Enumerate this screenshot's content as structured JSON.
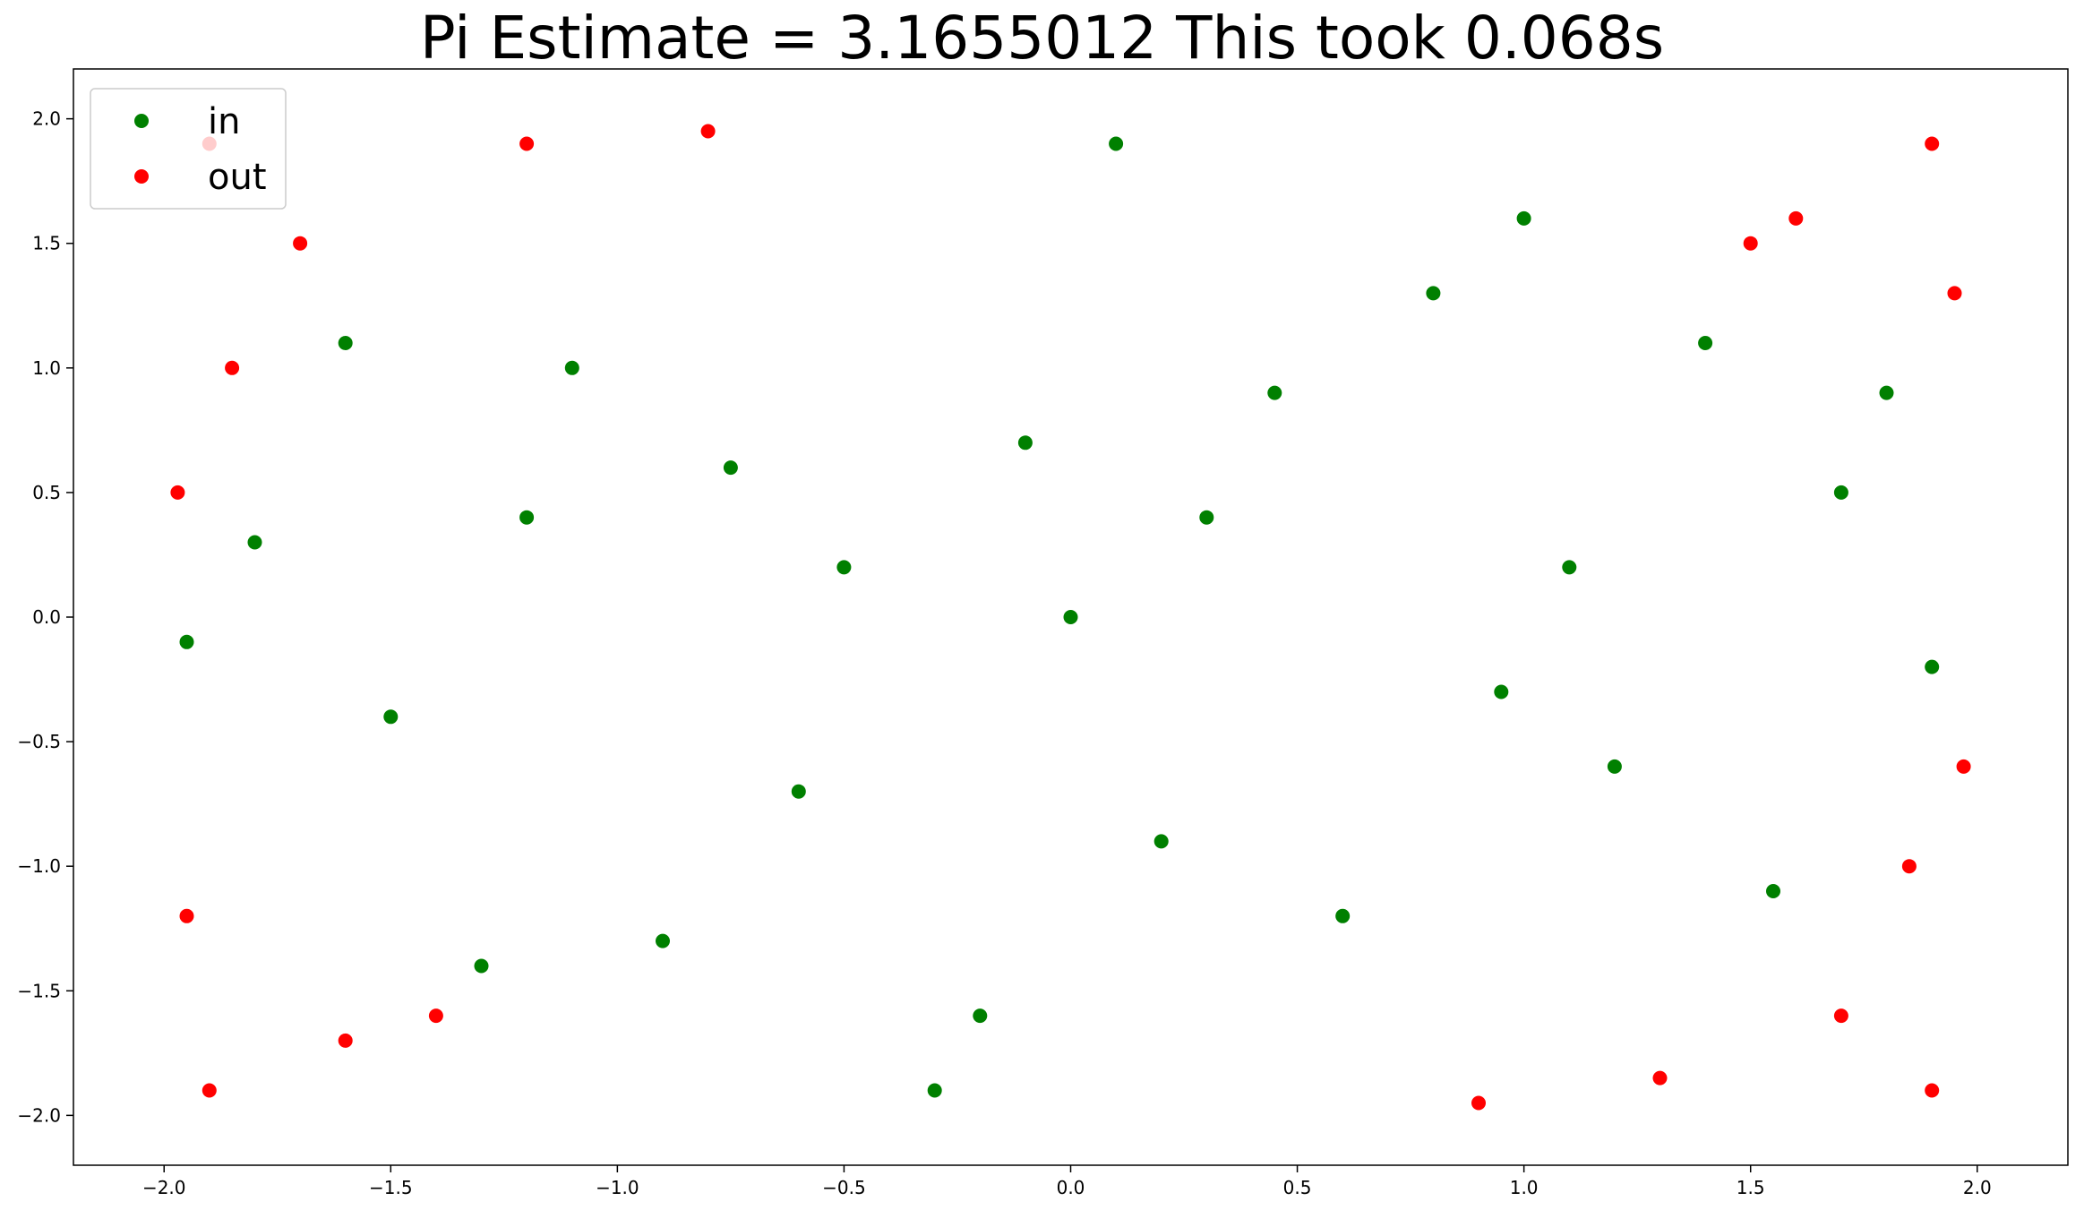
{
  "chart_data": {
    "type": "scatter",
    "title": "Pi Estimate = 3.1655012 This took 0.068s",
    "xlabel": "",
    "ylabel": "",
    "xlim": [
      -2.2,
      2.2
    ],
    "ylim": [
      -2.2,
      2.2
    ],
    "xticks": [
      -2.0,
      -1.5,
      -1.0,
      -0.5,
      0.0,
      0.5,
      1.0,
      1.5,
      2.0
    ],
    "xtick_labels": [
      "−2.0",
      "−1.5",
      "−1.0",
      "−0.5",
      "0.0",
      "0.5",
      "1.0",
      "1.5",
      "2.0"
    ],
    "yticks": [
      2.0,
      1.5,
      1.0,
      0.5,
      0.0,
      -0.5,
      -1.0,
      -1.5,
      -2.0
    ],
    "ytick_labels": [
      "2.0",
      "1.5",
      "1.0",
      "0.5",
      "0.0",
      "−0.5",
      "−1.0",
      "−1.5",
      "−2.0"
    ],
    "grid": false,
    "legend_position": "top-left",
    "series": [
      {
        "name": "in",
        "color": "#008000",
        "points": [
          [
            0.0,
            0.0
          ],
          [
            0.3,
            0.4
          ],
          [
            -0.5,
            0.2
          ],
          [
            1.2,
            -0.6
          ],
          [
            -1.1,
            1.0
          ],
          [
            0.8,
            1.3
          ],
          [
            -1.5,
            -0.4
          ],
          [
            1.7,
            0.5
          ],
          [
            -0.2,
            -1.6
          ],
          [
            0.6,
            -1.2
          ],
          [
            -1.8,
            0.3
          ],
          [
            1.0,
            1.6
          ],
          [
            -0.9,
            -1.3
          ],
          [
            0.1,
            1.9
          ],
          [
            -0.3,
            -1.9
          ],
          [
            1.9,
            -0.2
          ],
          [
            -1.95,
            -0.1
          ],
          [
            1.4,
            1.1
          ],
          [
            -1.3,
            -1.4
          ],
          [
            0.45,
            0.9
          ],
          [
            -0.75,
            0.6
          ],
          [
            1.55,
            -1.1
          ],
          [
            -0.1,
            0.7
          ],
          [
            0.95,
            -0.3
          ],
          [
            -1.6,
            1.1
          ],
          [
            0.2,
            -0.9
          ],
          [
            1.8,
            0.9
          ],
          [
            -0.6,
            -0.7
          ],
          [
            1.1,
            0.2
          ],
          [
            -1.2,
            0.4
          ]
        ]
      },
      {
        "name": "out",
        "color": "#ff0000",
        "points": [
          [
            -1.9,
            1.9
          ],
          [
            1.9,
            1.9
          ],
          [
            -1.9,
            -1.9
          ],
          [
            1.9,
            -1.9
          ],
          [
            -1.7,
            1.5
          ],
          [
            1.6,
            1.6
          ],
          [
            -1.6,
            -1.7
          ],
          [
            1.7,
            -1.6
          ],
          [
            -1.95,
            -1.2
          ],
          [
            1.95,
            1.3
          ],
          [
            -1.2,
            1.9
          ],
          [
            1.3,
            -1.85
          ],
          [
            -1.85,
            1.0
          ],
          [
            1.85,
            -1.0
          ],
          [
            -1.4,
            -1.6
          ],
          [
            1.5,
            1.5
          ],
          [
            -0.8,
            1.95
          ],
          [
            0.9,
            -1.95
          ],
          [
            -1.97,
            0.5
          ],
          [
            1.97,
            -0.6
          ]
        ]
      }
    ]
  }
}
